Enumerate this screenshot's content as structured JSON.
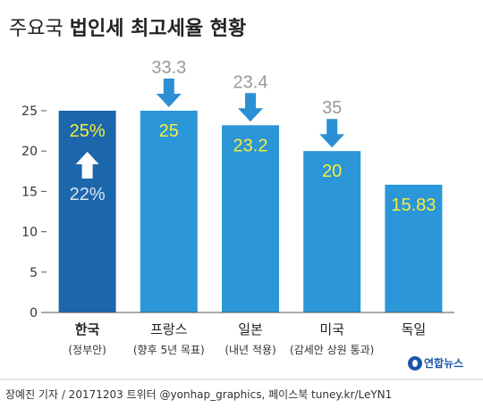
{
  "title_regular": "주요국",
  "title_bold": "법인세 최고세율 현황",
  "footer": "장예진 기자 / 20171203 트위터 @yonhap_graphics, 페이스북 tuney.kr/LeYN1",
  "logo_text": "연합뉴스",
  "colors": {
    "bar_korea": "#1c66ac",
    "bar_other": "#2b96d8",
    "value_label": "#f7ee3b",
    "previous_value": "#999999",
    "down_arrow": "#2b8fd4",
    "up_arrow": "#ffffff",
    "prev_korea_label": "#d6e6f3"
  },
  "chart_data": {
    "type": "bar",
    "ylim": [
      0,
      25
    ],
    "yticks": [
      0,
      5,
      10,
      15,
      20,
      25
    ],
    "categories": [
      {
        "name": "한국",
        "note": "(정부안)",
        "bold": true
      },
      {
        "name": "프랑스",
        "note": "(향후 5년 목표)",
        "bold": false
      },
      {
        "name": "일본",
        "note": "(내년 적용)",
        "bold": false
      },
      {
        "name": "미국",
        "note": "(감세안 상원 통과)",
        "bold": false
      },
      {
        "name": "독일",
        "note": "",
        "bold": false
      }
    ],
    "values": [
      25,
      25,
      23.2,
      20,
      15.83
    ],
    "value_labels": [
      "25%",
      "25",
      "23.2",
      "20",
      "15.83"
    ],
    "previous_values": [
      22,
      33.3,
      23.4,
      35,
      null
    ],
    "previous_labels": [
      "22%",
      "33.3",
      "23.4",
      "35",
      ""
    ]
  }
}
